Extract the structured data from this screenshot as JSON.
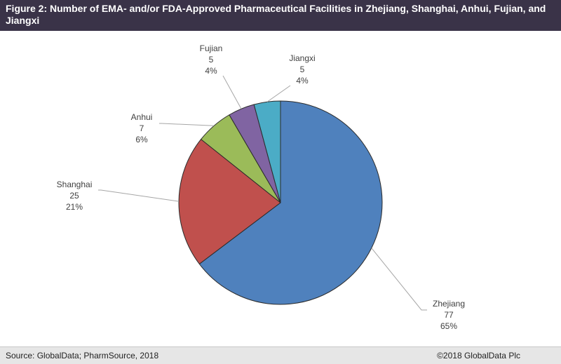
{
  "header": {
    "title": "Figure 2:  Number of EMA- and/or FDA-Approved Pharmaceutical Facilities in Zhejiang, Shanghai, Anhui, Fujian, and Jiangxi"
  },
  "chart_data": {
    "type": "pie",
    "title": "",
    "slices": [
      {
        "label": "Zhejiang",
        "value": 77,
        "percent": "65%",
        "color": "#4f81bd"
      },
      {
        "label": "Shanghai",
        "value": 25,
        "percent": "21%",
        "color": "#c0504d"
      },
      {
        "label": "Anhui",
        "value": 7,
        "percent": "6%",
        "color": "#9bbb59"
      },
      {
        "label": "Fujian",
        "value": 5,
        "percent": "4%",
        "color": "#8064a2"
      },
      {
        "label": "Jiangxi",
        "value": 5,
        "percent": "4%",
        "color": "#4bacc6"
      }
    ],
    "start_angle_deg": 0,
    "direction": "clockwise",
    "legend": "none"
  },
  "footer": {
    "source": "Source: GlobalData; PharmSource, 2018",
    "copyright": "©2018 GlobalData Plc"
  }
}
